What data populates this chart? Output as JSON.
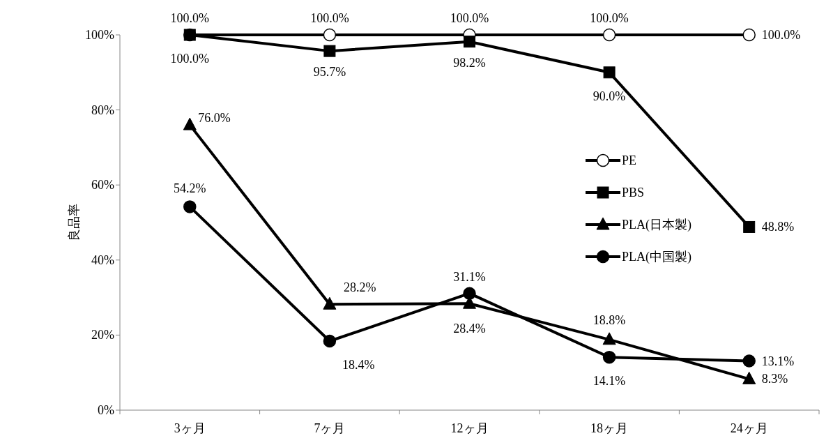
{
  "chart_data": {
    "type": "line",
    "ylabel": "良品率",
    "categories": [
      "3ヶ月",
      "7ヶ月",
      "12ヶ月",
      "18ヶ月",
      "24ヶ月"
    ],
    "ylim": [
      0,
      100
    ],
    "yticks": [
      {
        "value": 0,
        "label": "0%"
      },
      {
        "value": 20,
        "label": "20%"
      },
      {
        "value": 40,
        "label": "40%"
      },
      {
        "value": 60,
        "label": "60%"
      },
      {
        "value": 80,
        "label": "80%"
      },
      {
        "value": 100,
        "label": "100%"
      }
    ],
    "grid": false,
    "legend": "right",
    "line_style": "solid",
    "series": [
      {
        "name": "PE",
        "color": "#000000",
        "marker": "circle",
        "colors": [
          "#ffffff",
          "#ffffff",
          "#ffffff",
          "#ffffff",
          "#ffffff"
        ],
        "values": [
          100,
          100,
          100,
          100,
          100
        ],
        "value_labels": [
          "100.0%",
          "100.0%",
          "100.0%",
          "100.0%",
          "100.0%"
        ]
      },
      {
        "name": "PBS",
        "color": "#000000",
        "marker": "square",
        "values": [
          100,
          95.7,
          98.2,
          90.0,
          48.8
        ],
        "value_labels": [
          "100.0%",
          "95.7%",
          "98.2%",
          "90.0%",
          "48.8%"
        ]
      },
      {
        "name": "PLA(日本製)",
        "color": "#000000",
        "marker": "triangle",
        "values": [
          76.0,
          28.2,
          28.4,
          18.8,
          8.3
        ],
        "value_labels": [
          "76.0%",
          "28.2%",
          "28.4%",
          "18.8%",
          "8.3%"
        ]
      },
      {
        "name": "PLA(中国製)",
        "color": "#000000",
        "marker": "circle",
        "values": [
          54.2,
          18.4,
          31.1,
          14.1,
          13.1
        ],
        "value_labels": [
          "54.2%",
          "18.4%",
          "31.1%",
          "14.1%",
          "13.1%"
        ]
      }
    ]
  }
}
